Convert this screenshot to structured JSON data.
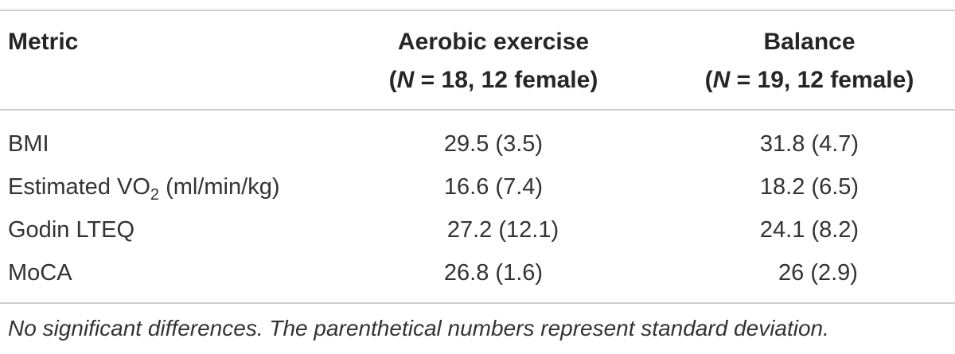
{
  "table": {
    "header": {
      "metric": "Metric",
      "col1_title": "Aerobic exercise",
      "col1_n_label": "N",
      "col1_n_rest": " = 18, 12 female)",
      "col2_title": "Balance",
      "col2_n_label": "N",
      "col2_n_rest": " = 19, 12 female)",
      "open_paren": "("
    },
    "rows": [
      {
        "metric": "BMI",
        "aerobic": "29.5 (3.5)",
        "balance": "31.8 (4.7)"
      },
      {
        "metric_prefix": "Estimated VO",
        "metric_sub": "2",
        "metric_suffix": " (ml/min/kg)",
        "aerobic": "16.6 (7.4)",
        "balance": "18.2 (6.5)"
      },
      {
        "metric": "Godin LTEQ",
        "aerobic": "27.2 (12.1)",
        "balance": "24.1 (8.2)"
      },
      {
        "metric": "MoCA",
        "aerobic": "26.8 (1.6)",
        "balance": "26 (2.9)"
      }
    ],
    "footnote": "No significant differences. The parenthetical numbers represent standard deviation."
  }
}
